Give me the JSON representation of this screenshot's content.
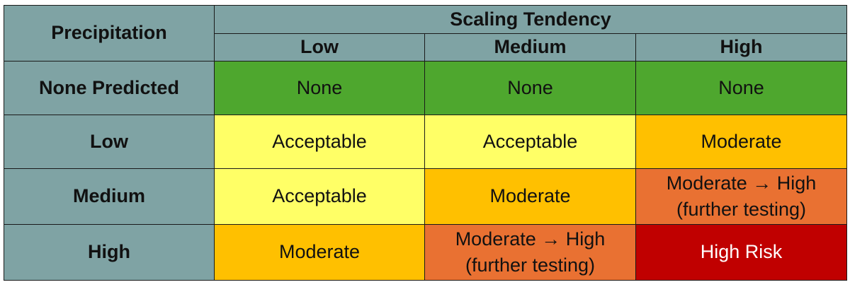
{
  "table": {
    "corner_label": "Precipitation",
    "group_header": "Scaling Tendency",
    "column_headers": [
      "Low",
      "Medium",
      "High"
    ],
    "rows": [
      {
        "label": "None Predicted",
        "cells": [
          {
            "text": "None",
            "line2": "",
            "level": "none"
          },
          {
            "text": "None",
            "line2": "",
            "level": "none"
          },
          {
            "text": "None",
            "line2": "",
            "level": "none"
          }
        ]
      },
      {
        "label": "Low",
        "cells": [
          {
            "text": "Acceptable",
            "line2": "",
            "level": "acceptable"
          },
          {
            "text": "Acceptable",
            "line2": "",
            "level": "acceptable"
          },
          {
            "text": "Moderate",
            "line2": "",
            "level": "moderate"
          }
        ]
      },
      {
        "label": "Medium",
        "cells": [
          {
            "text": "Acceptable",
            "line2": "",
            "level": "acceptable"
          },
          {
            "text": "Moderate",
            "line2": "",
            "level": "moderate"
          },
          {
            "text": "Moderate → High",
            "line2": "(further testing)",
            "level": "modhigh"
          }
        ]
      },
      {
        "label": "High",
        "cells": [
          {
            "text": "Moderate",
            "line2": "",
            "level": "moderate"
          },
          {
            "text": "Moderate → High",
            "line2": "(further testing)",
            "level": "modhigh"
          },
          {
            "text": "High Risk",
            "line2": "",
            "level": "high"
          }
        ]
      }
    ]
  },
  "colors": {
    "header_bg": "#7fa3a4",
    "none": "#4ea72e",
    "acceptable": "#ffff66",
    "moderate": "#ffc000",
    "moderate_to_high": "#e97132",
    "high_risk": "#c00000"
  }
}
